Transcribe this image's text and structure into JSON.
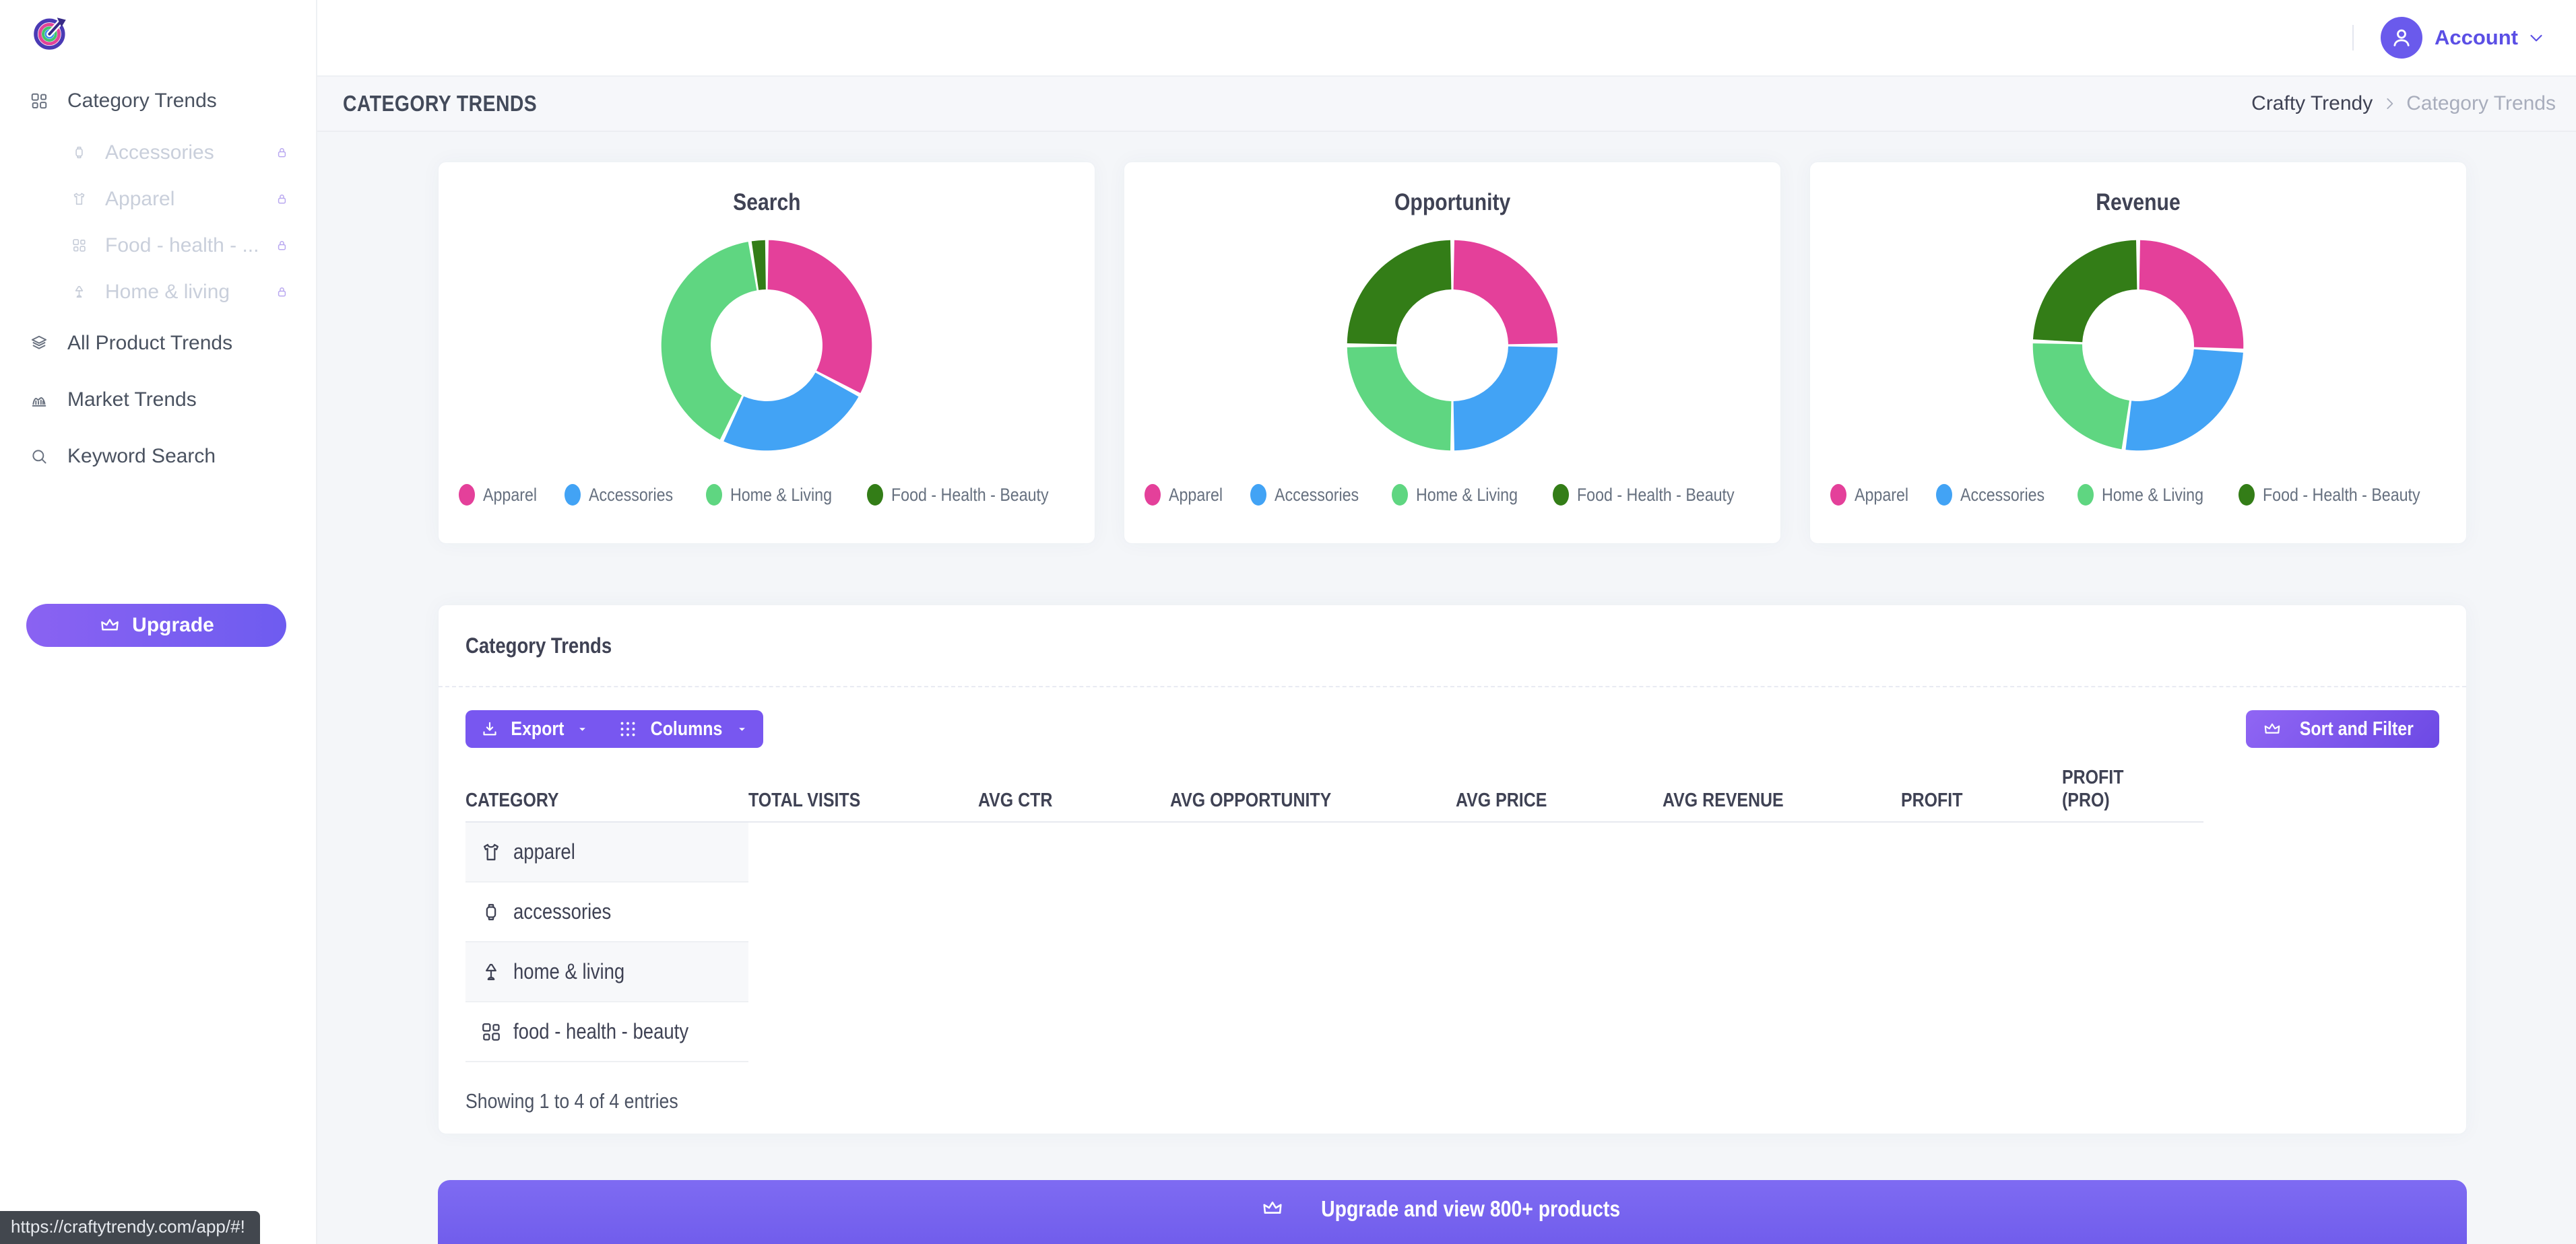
{
  "sidebar": {
    "items": [
      {
        "label": "Category Trends",
        "icon": "grid",
        "sub": false,
        "locked": false
      },
      {
        "label": "Accessories",
        "icon": "watch",
        "sub": true,
        "locked": true
      },
      {
        "label": "Apparel",
        "icon": "shirt",
        "sub": true,
        "locked": true
      },
      {
        "label": "Food - health - ...",
        "icon": "grid",
        "sub": true,
        "locked": true
      },
      {
        "label": "Home & living",
        "icon": "lamp",
        "sub": true,
        "locked": true
      },
      {
        "label": "All Product Trends",
        "icon": "layers",
        "sub": false,
        "locked": false
      },
      {
        "label": "Market Trends",
        "icon": "chart",
        "sub": false,
        "locked": false
      },
      {
        "label": "Keyword Search",
        "icon": "search",
        "sub": false,
        "locked": false
      }
    ],
    "upgrade_label": "Upgrade"
  },
  "topbar": {
    "account_label": "Account"
  },
  "subheader": {
    "title": "CATEGORY TRENDS",
    "breadcrumb_root": "Crafty Trendy",
    "breadcrumb_current": "Category Trends"
  },
  "chart_data": [
    {
      "type": "donut",
      "title": "Search",
      "labels": [
        "Apparel",
        "Accessories",
        "Home & Living",
        "Food - Health - Beauty"
      ],
      "values": [
        32.8,
        24.2,
        40.5,
        2.5
      ],
      "colors": [
        "#e4409a",
        "#42a3f5",
        "#5fd681",
        "#337d17"
      ],
      "legend_position": "bottom"
    },
    {
      "type": "donut",
      "title": "Opportunity",
      "labels": [
        "Apparel",
        "Accessories",
        "Home & Living",
        "Food - Health - Beauty"
      ],
      "values": [
        25,
        25,
        25,
        25
      ],
      "colors": [
        "#e4409a",
        "#42a3f5",
        "#5fd681",
        "#337d17"
      ],
      "legend_position": "bottom"
    },
    {
      "type": "donut",
      "title": "Revenue",
      "labels": [
        "Apparel",
        "Accessories",
        "Home & Living",
        "Food - Health - Beauty"
      ],
      "values": [
        25.8,
        26.4,
        23.4,
        24.4
      ],
      "colors": [
        "#e4409a",
        "#42a3f5",
        "#5fd681",
        "#337d17"
      ],
      "legend_position": "bottom"
    }
  ],
  "table": {
    "title": "Category Trends",
    "toolbar": {
      "export_label": "Export",
      "columns_label": "Columns",
      "sort_filter_label": "Sort and Filter"
    },
    "columns": [
      {
        "label": "CATEGORY"
      },
      {
        "label": "TOTAL VISITS"
      },
      {
        "label": "AVG CTR"
      },
      {
        "label": "AVG OPPORTUNITY"
      },
      {
        "label": "AVG PRICE"
      },
      {
        "label": "AVG REVENUE"
      },
      {
        "label": "PROFIT"
      },
      {
        "label": "PROFIT",
        "sub": "(PRO)"
      }
    ],
    "rows": [
      {
        "icon": "shirt",
        "category": "apparel"
      },
      {
        "icon": "watch",
        "category": "accessories"
      },
      {
        "icon": "lamp",
        "category": "home & living"
      },
      {
        "icon": "grid",
        "category": "food - health - beauty"
      }
    ],
    "footer": "Showing 1 to 4 of 4 entries"
  },
  "bottom_banner": {
    "label": "Upgrade and view 800+ products"
  },
  "status_tooltip": {
    "url": "https://craftytrendy.com/app/#!"
  }
}
